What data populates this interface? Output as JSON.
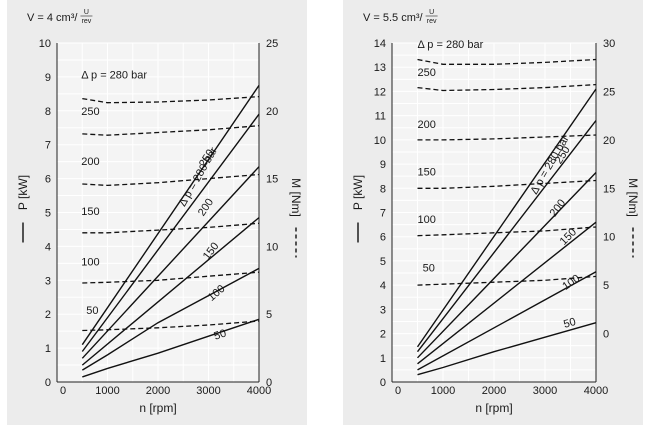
{
  "colors": {
    "background": "#ffffff",
    "panel": "#ececec",
    "plot": "#f4f4f4",
    "grid": "#ffffff",
    "line": "#111111"
  },
  "chart_data": [
    {
      "type": "line",
      "title_prefix": "V = 4 cm³/",
      "title_unit_top": "U",
      "title_unit_bottom": "rev",
      "xlabel": "n [rpm]",
      "ylabel_left": "P [kW]",
      "ylabel_right": "M [Nm]",
      "xlim": [
        0,
        4000
      ],
      "ylim_left": [
        0,
        10
      ],
      "ylim_right": [
        0,
        25
      ],
      "x_ticks": [
        "0",
        "1000",
        "2000",
        "3000",
        "4000"
      ],
      "y_ticks_left": [
        "0",
        "1",
        "2",
        "3",
        "4",
        "5",
        "6",
        "7",
        "8",
        "9",
        "10"
      ],
      "y_ticks_right": [
        "0",
        "5",
        "10",
        "15",
        "20",
        "25"
      ],
      "grid": true,
      "power_series": [
        {
          "label": "Δ p = 280 bar",
          "x": [
            500,
            4000
          ],
          "y": [
            1.1,
            8.75
          ]
        },
        {
          "label": "250",
          "x": [
            500,
            4000
          ],
          "y": [
            0.9,
            7.9
          ]
        },
        {
          "label": "200",
          "x": [
            500,
            4000
          ],
          "y": [
            0.7,
            6.35
          ]
        },
        {
          "label": "150",
          "x": [
            500,
            4000
          ],
          "y": [
            0.5,
            4.85
          ]
        },
        {
          "label": "100",
          "x": [
            500,
            1000,
            2000,
            3000,
            4000
          ],
          "y": [
            0.35,
            0.8,
            1.75,
            2.55,
            3.35
          ]
        },
        {
          "label": "50",
          "x": [
            500,
            1000,
            2000,
            3000,
            4000
          ],
          "y": [
            0.15,
            0.4,
            0.85,
            1.35,
            1.85
          ]
        }
      ],
      "torque_series": [
        {
          "label": "Δ p = 280 bar",
          "x": [
            500,
            1000,
            2000,
            3000,
            4000
          ],
          "y": [
            20.9,
            20.6,
            20.65,
            20.8,
            21.05
          ]
        },
        {
          "label": "250",
          "x": [
            500,
            1000,
            2000,
            3000,
            4000
          ],
          "y": [
            18.3,
            18.2,
            18.4,
            18.6,
            18.9
          ]
        },
        {
          "label": "200",
          "x": [
            500,
            1000,
            2000,
            3000,
            4000
          ],
          "y": [
            14.6,
            14.5,
            14.7,
            15.0,
            15.3
          ]
        },
        {
          "label": "150",
          "x": [
            500,
            1000,
            2000,
            3000,
            4000
          ],
          "y": [
            11.0,
            11.0,
            11.2,
            11.4,
            11.7
          ]
        },
        {
          "label": "100",
          "x": [
            500,
            1000,
            2000,
            3000,
            4000
          ],
          "y": [
            7.3,
            7.35,
            7.5,
            7.8,
            8.1
          ]
        },
        {
          "label": "50",
          "x": [
            500,
            1000,
            2000,
            3000,
            4000
          ],
          "y": [
            3.8,
            3.85,
            4.0,
            4.2,
            4.5
          ]
        }
      ]
    },
    {
      "type": "line",
      "title_prefix": "V = 5.5 cm³/",
      "title_unit_top": "U",
      "title_unit_bottom": "rev",
      "xlabel": "n [rpm]",
      "ylabel_left": "P [kW]",
      "ylabel_right": "M [Nm]",
      "xlim": [
        0,
        4000
      ],
      "ylim_left": [
        0,
        14
      ],
      "ylim_right": [
        -5,
        30
      ],
      "x_ticks": [
        "0",
        "1000",
        "2000",
        "3000",
        "4000"
      ],
      "y_ticks_left": [
        "0",
        "1",
        "2",
        "3",
        "4",
        "5",
        "6",
        "7",
        "8",
        "9",
        "10",
        "11",
        "12",
        "13",
        "14"
      ],
      "y_ticks_right": [
        "0",
        "5",
        "10",
        "15",
        "20",
        "25",
        "30"
      ],
      "grid": true,
      "power_series": [
        {
          "label": "Δ p = 280 bar",
          "x": [
            500,
            4000
          ],
          "y": [
            1.45,
            12.1
          ]
        },
        {
          "label": "250",
          "x": [
            500,
            4000
          ],
          "y": [
            1.25,
            10.8
          ]
        },
        {
          "label": "200",
          "x": [
            500,
            4000
          ],
          "y": [
            1.0,
            8.65
          ]
        },
        {
          "label": "150",
          "x": [
            500,
            4000
          ],
          "y": [
            0.75,
            6.6
          ]
        },
        {
          "label": "100",
          "x": [
            500,
            4000
          ],
          "y": [
            0.5,
            4.55
          ]
        },
        {
          "label": "50",
          "x": [
            500,
            1000,
            2000,
            3000,
            4000
          ],
          "y": [
            0.3,
            0.6,
            1.25,
            1.85,
            2.45
          ]
        }
      ],
      "torque_series": [
        {
          "label": "Δ p = 280 bar",
          "x": [
            500,
            1000,
            2000,
            3000,
            4000
          ],
          "y": [
            28.3,
            27.8,
            27.8,
            28.0,
            28.3
          ]
        },
        {
          "label": "250",
          "x": [
            500,
            1000,
            2000,
            3000,
            4000
          ],
          "y": [
            25.4,
            25.1,
            25.2,
            25.4,
            25.7
          ]
        },
        {
          "label": "200",
          "x": [
            500,
            1000,
            2000,
            3000,
            4000
          ],
          "y": [
            20.0,
            20.0,
            20.1,
            20.3,
            20.5
          ]
        },
        {
          "label": "150",
          "x": [
            500,
            1000,
            2000,
            3000,
            4000
          ],
          "y": [
            15.0,
            15.0,
            15.2,
            15.5,
            15.8
          ]
        },
        {
          "label": "100",
          "x": [
            500,
            1000,
            2000,
            3000,
            4000
          ],
          "y": [
            10.1,
            10.2,
            10.4,
            10.6,
            11.0
          ]
        },
        {
          "label": "50",
          "x": [
            500,
            1000,
            2000,
            3000,
            4000
          ],
          "y": [
            5.0,
            5.1,
            5.3,
            5.5,
            5.9
          ]
        }
      ]
    }
  ]
}
